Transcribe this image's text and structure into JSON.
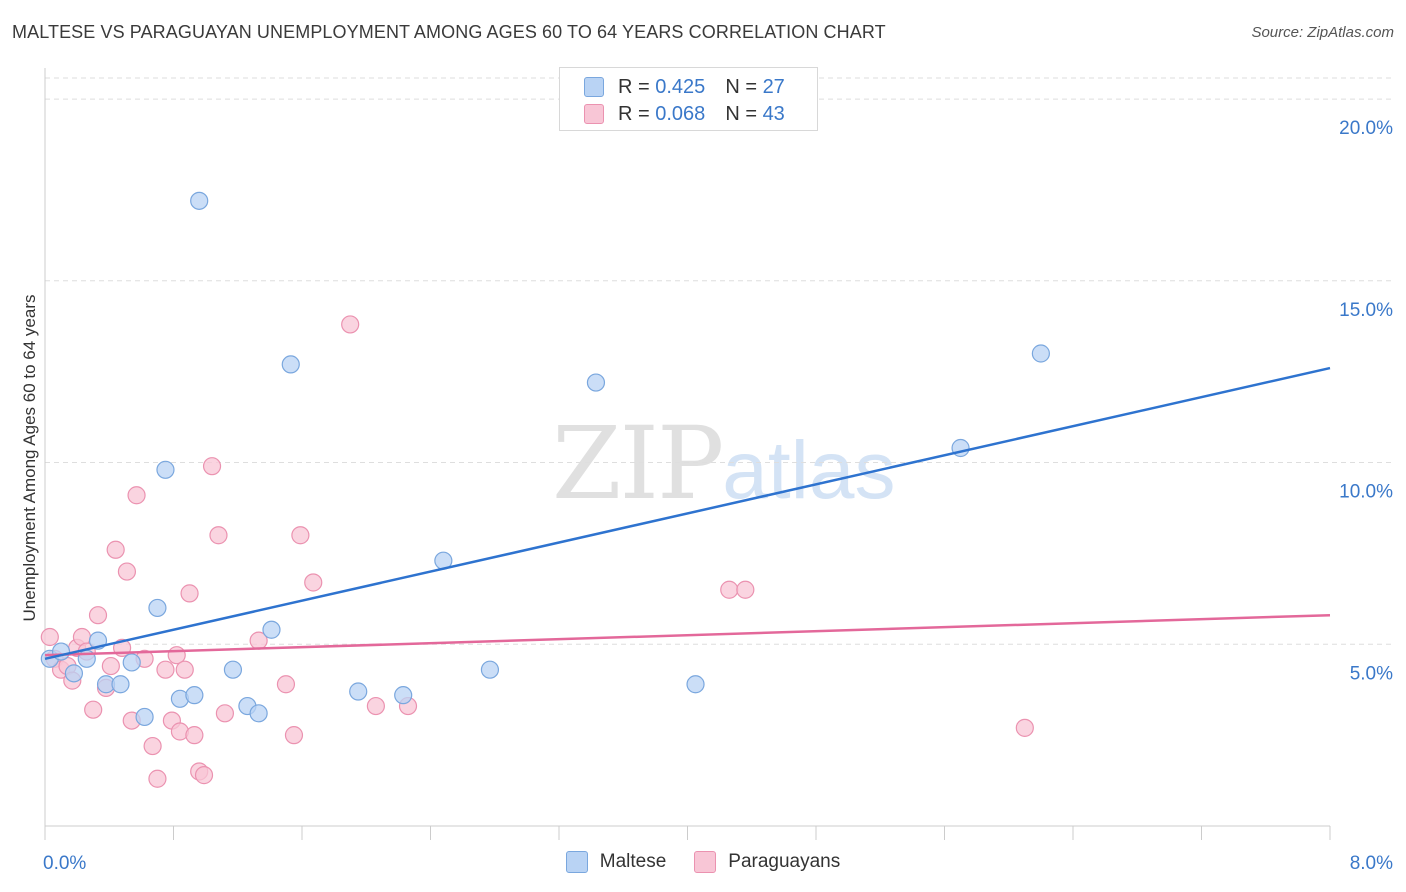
{
  "title": "MALTESE VS PARAGUAYAN UNEMPLOYMENT AMONG AGES 60 TO 64 YEARS CORRELATION CHART",
  "source": "Source: ZipAtlas.com",
  "watermark": {
    "zip": "ZIP",
    "atlas": "atlas"
  },
  "legend": {
    "maltese": {
      "r_label": "R =",
      "r_value": "0.425",
      "n_label": "N =",
      "n_value": "27"
    },
    "paraguayans": {
      "r_label": "R =",
      "r_value": "0.068",
      "n_label": "N =",
      "n_value": "43"
    }
  },
  "colors": {
    "maltese_fill": "#b9d3f4",
    "maltese_stroke": "#7aa7de",
    "maltese_line": "#2e73cf",
    "paraguayans_fill": "#f8c6d6",
    "paraguayans_stroke": "#eb92b0",
    "paraguayans_line": "#e3689a",
    "axis_text": "#3a78c9",
    "grid": "#dedede"
  },
  "chart_data": {
    "type": "scatter",
    "title": "MALTESE VS PARAGUAYAN UNEMPLOYMENT AMONG AGES 60 TO 64 YEARS CORRELATION CHART",
    "xlabel": "",
    "ylabel": "Unemployment Among Ages 60 to 64 years",
    "xlim": [
      0,
      8
    ],
    "ylim": [
      0,
      20.8
    ],
    "x_tick_labels": [
      "0.0%",
      "8.0%"
    ],
    "y_ticks": [
      5,
      10,
      15,
      20
    ],
    "y_tick_labels": [
      "5.0%",
      "10.0%",
      "15.0%",
      "20.0%"
    ],
    "grid": true,
    "legend_position": "top-center",
    "series": [
      {
        "name": "Maltese",
        "points": [
          [
            0.03,
            4.6
          ],
          [
            0.1,
            4.8
          ],
          [
            0.18,
            4.2
          ],
          [
            0.26,
            4.6
          ],
          [
            0.33,
            5.1
          ],
          [
            0.38,
            3.9
          ],
          [
            0.47,
            3.9
          ],
          [
            0.54,
            4.5
          ],
          [
            0.62,
            3.0
          ],
          [
            0.7,
            6.0
          ],
          [
            0.75,
            9.8
          ],
          [
            0.84,
            3.5
          ],
          [
            0.93,
            3.6
          ],
          [
            0.96,
            17.2
          ],
          [
            1.17,
            4.3
          ],
          [
            1.26,
            3.3
          ],
          [
            1.33,
            3.1
          ],
          [
            1.41,
            5.4
          ],
          [
            1.53,
            12.7
          ],
          [
            1.95,
            3.7
          ],
          [
            2.23,
            3.6
          ],
          [
            2.48,
            7.3
          ],
          [
            2.77,
            4.3
          ],
          [
            3.43,
            12.2
          ],
          [
            4.05,
            3.9
          ],
          [
            5.7,
            10.4
          ],
          [
            6.2,
            13.0
          ]
        ],
        "trend": [
          [
            0,
            4.6
          ],
          [
            8,
            12.6
          ]
        ]
      },
      {
        "name": "Paraguayans",
        "points": [
          [
            0.03,
            5.2
          ],
          [
            0.06,
            4.6
          ],
          [
            0.1,
            4.3
          ],
          [
            0.14,
            4.4
          ],
          [
            0.17,
            4.0
          ],
          [
            0.2,
            4.9
          ],
          [
            0.23,
            5.2
          ],
          [
            0.26,
            4.8
          ],
          [
            0.3,
            3.2
          ],
          [
            0.33,
            5.8
          ],
          [
            0.38,
            3.8
          ],
          [
            0.41,
            4.4
          ],
          [
            0.44,
            7.6
          ],
          [
            0.48,
            4.9
          ],
          [
            0.51,
            7.0
          ],
          [
            0.54,
            2.9
          ],
          [
            0.57,
            9.1
          ],
          [
            0.62,
            4.6
          ],
          [
            0.67,
            2.2
          ],
          [
            0.7,
            1.3
          ],
          [
            0.75,
            4.3
          ],
          [
            0.79,
            2.9
          ],
          [
            0.82,
            4.7
          ],
          [
            0.84,
            2.6
          ],
          [
            0.87,
            4.3
          ],
          [
            0.9,
            6.4
          ],
          [
            0.93,
            2.5
          ],
          [
            0.96,
            1.5
          ],
          [
            0.99,
            1.4
          ],
          [
            1.04,
            9.9
          ],
          [
            1.08,
            8.0
          ],
          [
            1.12,
            3.1
          ],
          [
            1.33,
            5.1
          ],
          [
            1.5,
            3.9
          ],
          [
            1.55,
            2.5
          ],
          [
            1.59,
            8.0
          ],
          [
            1.67,
            6.7
          ],
          [
            1.9,
            13.8
          ],
          [
            2.06,
            3.3
          ],
          [
            2.26,
            3.3
          ],
          [
            4.26,
            6.5
          ],
          [
            4.36,
            6.5
          ],
          [
            6.1,
            2.7
          ]
        ],
        "trend": [
          [
            0,
            4.7
          ],
          [
            8,
            5.8
          ]
        ]
      }
    ]
  },
  "bottom_legend": [
    "Maltese",
    "Paraguayans"
  ]
}
